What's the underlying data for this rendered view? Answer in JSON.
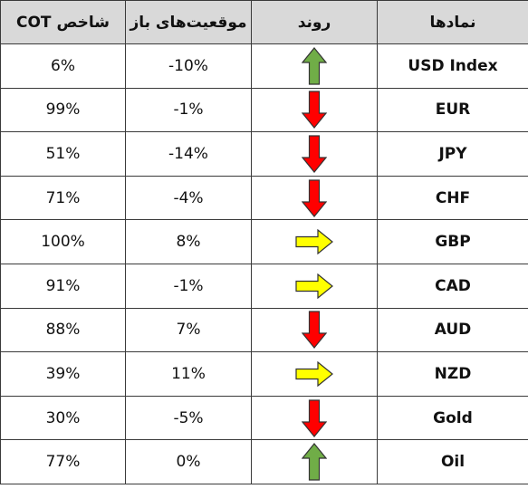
{
  "table": {
    "headers": {
      "cot": "شاخص COT",
      "positions": "موقعیت‌های باز",
      "trend": "روند",
      "symbols": "نمادها"
    },
    "rows": [
      {
        "symbol": "USD Index",
        "trend": "up",
        "positions": "-10%",
        "cot": "6%"
      },
      {
        "symbol": "EUR",
        "trend": "down",
        "positions": "-1%",
        "cot": "99%"
      },
      {
        "symbol": "JPY",
        "trend": "down",
        "positions": "-14%",
        "cot": "51%"
      },
      {
        "symbol": "CHF",
        "trend": "down",
        "positions": "-4%",
        "cot": "71%"
      },
      {
        "symbol": "GBP",
        "trend": "right",
        "positions": "8%",
        "cot": "100%"
      },
      {
        "symbol": "CAD",
        "trend": "right",
        "positions": "-1%",
        "cot": "91%"
      },
      {
        "symbol": "AUD",
        "trend": "down",
        "positions": "7%",
        "cot": "88%"
      },
      {
        "symbol": "NZD",
        "trend": "right",
        "positions": "11%",
        "cot": "39%"
      },
      {
        "symbol": "Gold",
        "trend": "down",
        "positions": "-5%",
        "cot": "30%"
      },
      {
        "symbol": "Oil",
        "trend": "up",
        "positions": "0%",
        "cot": "77%"
      }
    ]
  },
  "arrow_colors": {
    "up": "#70ad47",
    "down": "#ff0000",
    "right": "#ffff00",
    "outline": "#333333"
  },
  "arrow_icons": {
    "up": "arrow-up-icon",
    "down": "arrow-down-icon",
    "right": "arrow-right-icon"
  }
}
